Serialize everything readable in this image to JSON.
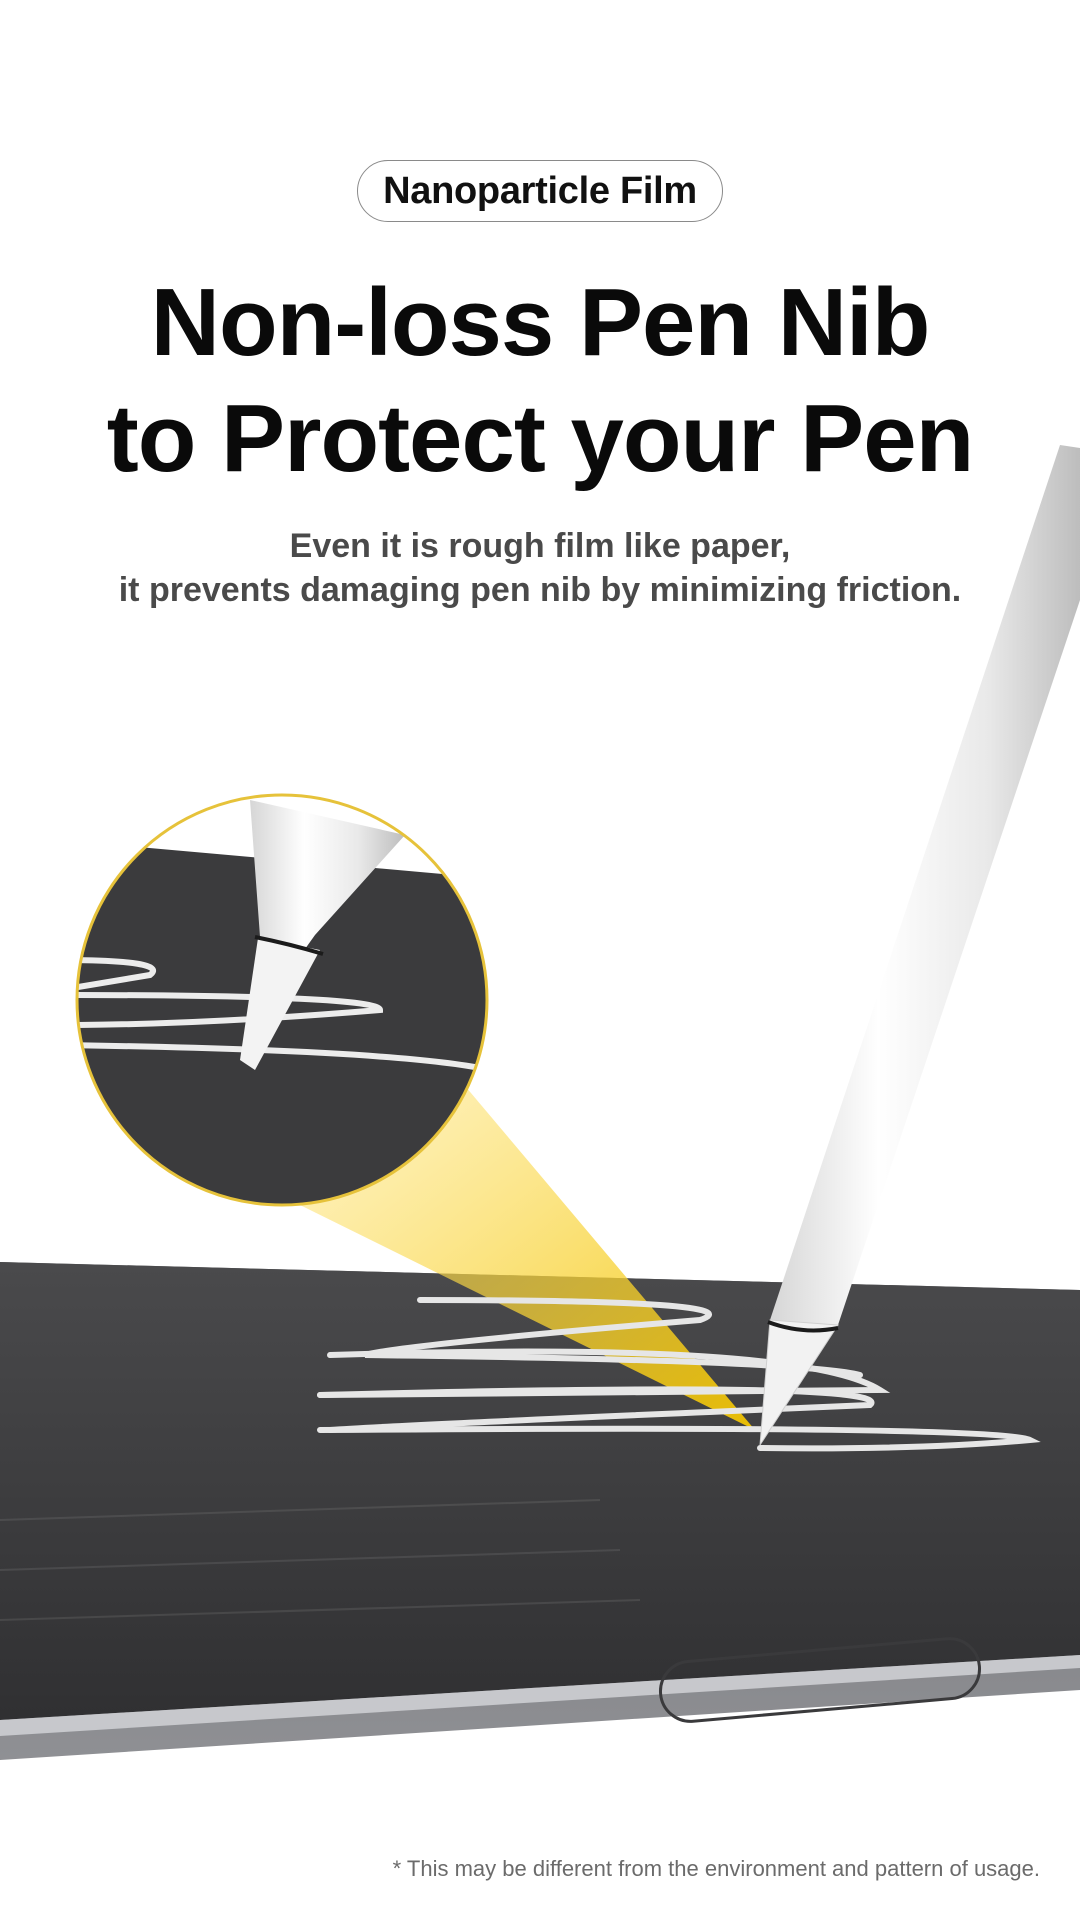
{
  "badge": {
    "label": "Nanoparticle Film"
  },
  "headline": {
    "line1": "Non-loss Pen Nib",
    "line2": "to Protect your Pen"
  },
  "subtext": {
    "line1": "Even it is rough film like paper,",
    "line2": "it prevents damaging pen nib by minimizing friction."
  },
  "disclaimer": "* This may be different from the environment and pattern of usage.",
  "colors": {
    "accent_yellow": "#f2c400",
    "screen_dark": "#3c3c3e",
    "pen_white": "#f4f4f4"
  }
}
